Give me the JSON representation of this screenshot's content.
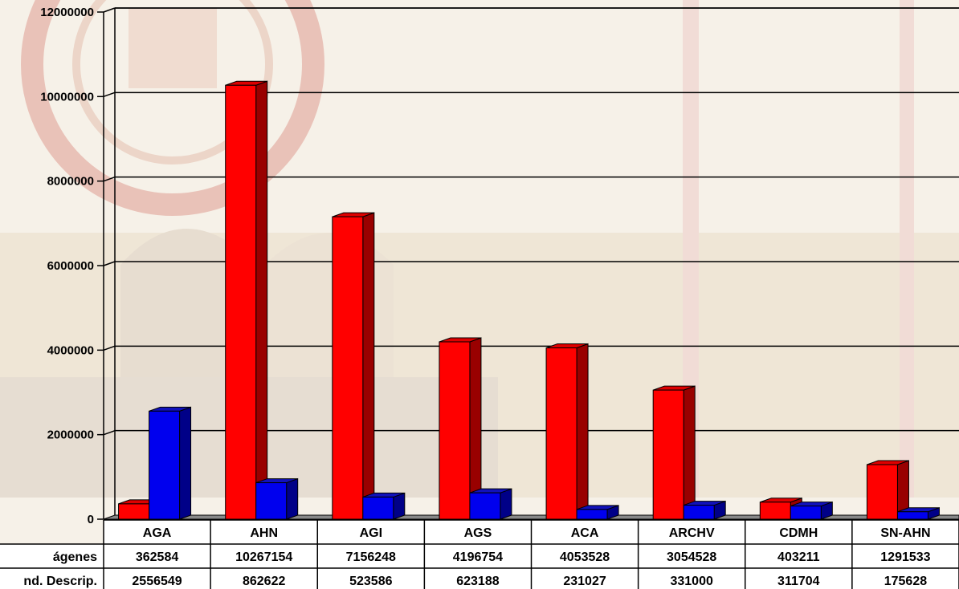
{
  "chart_data": {
    "type": "bar",
    "categories": [
      "AGA",
      "AHN",
      "AGI",
      "AGS",
      "ACA",
      "ARCHV",
      "CDMH",
      "SN-AHN"
    ],
    "series": [
      {
        "name": "Imágenes",
        "values": [
          362584,
          10267154,
          7156248,
          4196754,
          4053528,
          3054528,
          403211,
          1291533
        ],
        "color": "#ff0000"
      },
      {
        "name": "Und. Descrip.",
        "values": [
          2556549,
          862622,
          523586,
          623188,
          231027,
          331000,
          311704,
          175628
        ],
        "color": "#0000ee"
      }
    ],
    "ylim": [
      0,
      12000000
    ],
    "yticks": [
      "0",
      "2000000",
      "4000000",
      "6000000",
      "8000000",
      "10000000",
      "12000000"
    ],
    "grid": true,
    "legend": "data-table",
    "row_labels": [
      "ágenes",
      "nd. Descrip."
    ],
    "table": {
      "Imágenes": [
        "362584",
        "10267154",
        "7156248",
        "4196754",
        "4053528",
        "3054528",
        "403211",
        "1291533"
      ],
      "Und. Descrip.": [
        "2556549",
        "862622",
        "523586",
        "623188",
        "231027",
        "331000",
        "311704",
        "175628"
      ]
    }
  }
}
